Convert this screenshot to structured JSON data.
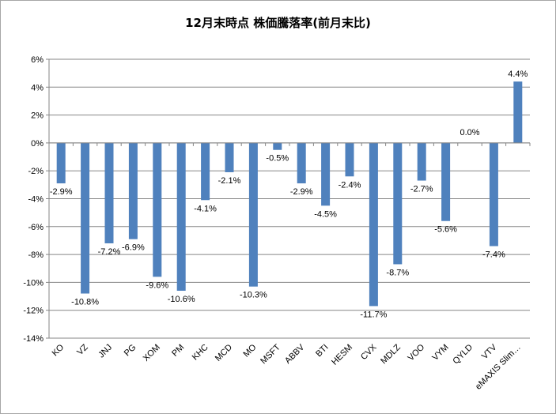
{
  "chart_data": {
    "type": "bar",
    "title": "12月末時点 株価騰落率(前月末比)",
    "categories": [
      "KO",
      "VZ",
      "JNJ",
      "PG",
      "XOM",
      "PM",
      "KHC",
      "MCD",
      "MO",
      "MSFT",
      "ABBV",
      "BTI",
      "HESM",
      "CVX",
      "MDLZ",
      "VOO",
      "VYM",
      "QYLD",
      "VTV",
      "eMAXIS Slim…"
    ],
    "values": [
      -2.9,
      -10.8,
      -7.2,
      -6.9,
      -9.6,
      -10.6,
      -4.1,
      -2.1,
      -10.3,
      -0.5,
      -2.9,
      -4.5,
      -2.4,
      -11.7,
      -8.7,
      -2.7,
      -5.6,
      0.0,
      -7.4,
      4.4
    ],
    "data_labels": [
      "-2.9%",
      "-10.8%",
      "-7.2%",
      "-6.9%",
      "-9.6%",
      "-10.6%",
      "-4.1%",
      "-2.1%",
      "-10.3%",
      "-0.5%",
      "-2.9%",
      "-4.5%",
      "-2.4%",
      "-11.7%",
      "-8.7%",
      "-2.7%",
      "-5.6%",
      "0.0%",
      "-7.4%",
      "4.4%"
    ],
    "ylim": [
      -14,
      6
    ],
    "yticks": [
      6,
      4,
      2,
      0,
      -2,
      -4,
      -6,
      -8,
      -10,
      -12,
      -14
    ],
    "ytick_labels": [
      "6%",
      "4%",
      "2%",
      "0%",
      "-2%",
      "-4%",
      "-6%",
      "-8%",
      "-10%",
      "-12%",
      "-14%"
    ],
    "bar_color": "#4f81bd",
    "grid": true,
    "legend": "none"
  }
}
